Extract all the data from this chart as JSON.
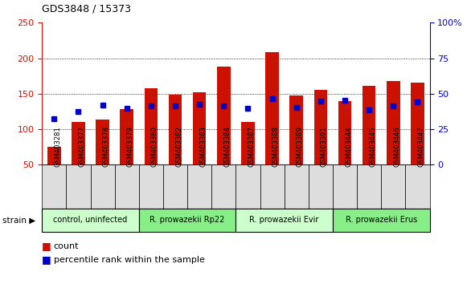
{
  "title": "GDS3848 / 15373",
  "samples": [
    "GSM403281",
    "GSM403377",
    "GSM403378",
    "GSM403379",
    "GSM403380",
    "GSM403382",
    "GSM403383",
    "GSM403384",
    "GSM403387",
    "GSM403388",
    "GSM403389",
    "GSM403391",
    "GSM403444",
    "GSM403445",
    "GSM403446",
    "GSM403447"
  ],
  "counts": [
    75,
    110,
    114,
    128,
    158,
    149,
    152,
    188,
    110,
    209,
    147,
    156,
    140,
    161,
    168,
    166
  ],
  "percentile_ranks_left_scale": [
    115,
    125,
    134,
    129,
    133,
    133,
    135,
    133,
    129,
    143,
    131,
    140,
    141,
    127,
    133,
    138
  ],
  "groups": [
    {
      "label": "control, uninfected",
      "start": 0,
      "end": 4,
      "color": "#ccffcc"
    },
    {
      "label": "R. prowazekii Rp22",
      "start": 4,
      "end": 8,
      "color": "#88ee88"
    },
    {
      "label": "R. prowazekii Evir",
      "start": 8,
      "end": 12,
      "color": "#ccffcc"
    },
    {
      "label": "R. prowazekii Erus",
      "start": 12,
      "end": 16,
      "color": "#88ee88"
    }
  ],
  "ylim_left": [
    50,
    250
  ],
  "ylim_right": [
    0,
    100
  ],
  "bar_color": "#cc1100",
  "dot_color": "#0000cc",
  "grid_color": "#000000",
  "tick_color_left": "#cc1100",
  "tick_color_right": "#0000cc",
  "legend_count_label": "count",
  "legend_pct_label": "percentile rank within the sample",
  "strain_label": "strain",
  "bg_color": "#dddddd"
}
